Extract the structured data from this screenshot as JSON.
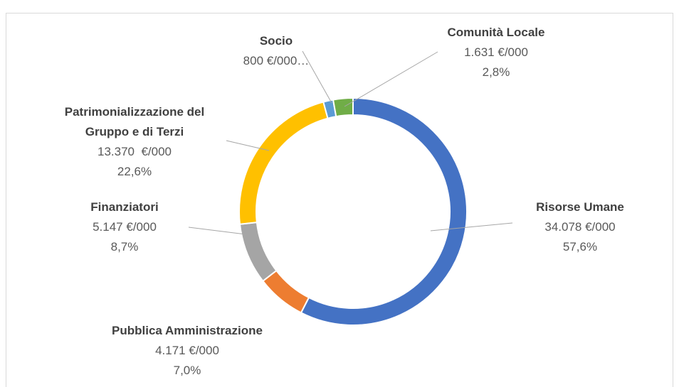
{
  "chart_data": {
    "type": "donut",
    "categories": [
      "Risorse Umane",
      "Pubblica Amministrazione",
      "Finanziatori",
      "Patrimonializzazione del Gruppo e di Terzi",
      "Socio",
      "Comunità Locale"
    ],
    "values": [
      57.6,
      7.0,
      8.7,
      22.6,
      1.4,
      2.8
    ],
    "amount_labels": [
      "34.078 €/000",
      "4.171 €/000",
      "5.147 €/000",
      "13.370  €/000",
      "800 €/000…",
      "1.631 €/000"
    ],
    "value_labels": [
      "57,6%",
      "7,0%",
      "8,7%",
      "22,6%",
      null,
      "2,8%"
    ],
    "colors": [
      "#4472c4",
      "#ed7d31",
      "#a5a5a5",
      "#ffc000",
      "#5b9bd5",
      "#70ad47"
    ]
  }
}
